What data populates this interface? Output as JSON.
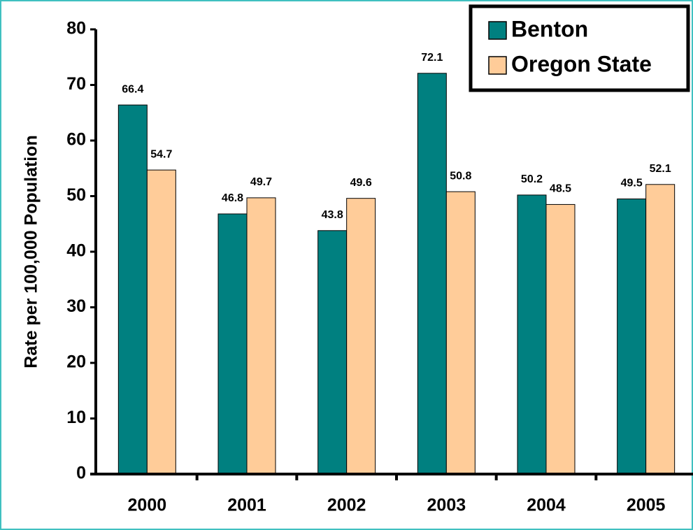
{
  "chart_data": {
    "type": "bar",
    "y_label": "Rate per 100,000 Population",
    "categories": [
      "2000",
      "2001",
      "2002",
      "2003",
      "2004",
      "2005"
    ],
    "series": [
      {
        "name": "Benton",
        "color": "#008080",
        "values": [
          66.4,
          46.8,
          43.8,
          72.1,
          50.2,
          49.5
        ]
      },
      {
        "name": "Oregon State",
        "color": "#ffcc99",
        "values": [
          54.7,
          49.7,
          49.6,
          50.8,
          48.5,
          52.1
        ]
      }
    ],
    "ylim": [
      0,
      80
    ],
    "yticks": [
      0,
      10,
      20,
      30,
      40,
      50,
      60,
      70,
      80
    ],
    "legend": "upper right",
    "grid": false
  }
}
